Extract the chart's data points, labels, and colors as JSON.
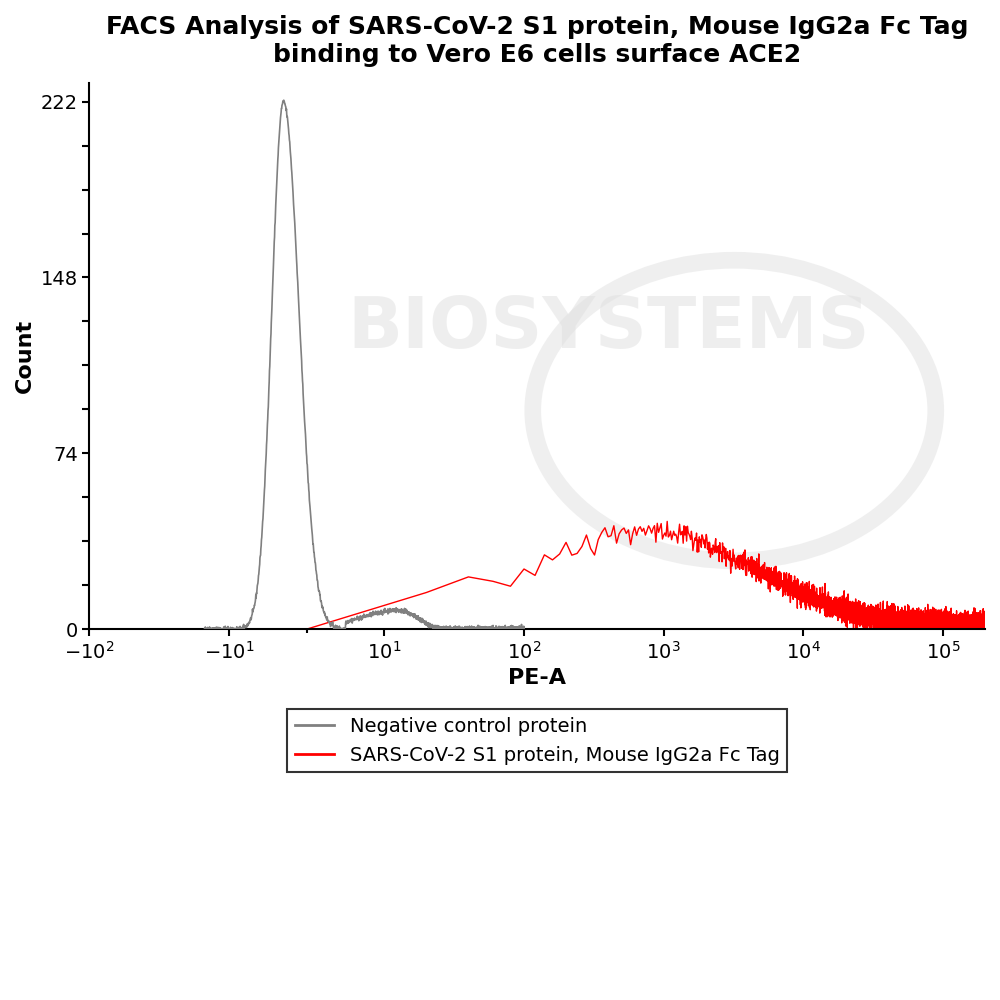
{
  "title_line1": "FACS Analysis of SARS-CoV-2 S1 protein, Mouse IgG2a Fc Tag",
  "title_line2": "binding to Vero E6 cells surface ACE2",
  "xlabel": "PE-A",
  "ylabel": "Count",
  "yticks": [
    0,
    74,
    148,
    222
  ],
  "ylim": [
    0,
    230
  ],
  "background_color": "#ffffff",
  "gray_color": "#808080",
  "red_color": "#ff0000",
  "legend_labels": [
    "Negative control protein",
    "SARS-CoV-2 S1 protein, Mouse IgG2a Fc Tag"
  ],
  "watermark_text": "BIOSYSTEMS",
  "title_fontsize": 18,
  "axis_fontsize": 16,
  "tick_fontsize": 14,
  "legend_fontsize": 14
}
